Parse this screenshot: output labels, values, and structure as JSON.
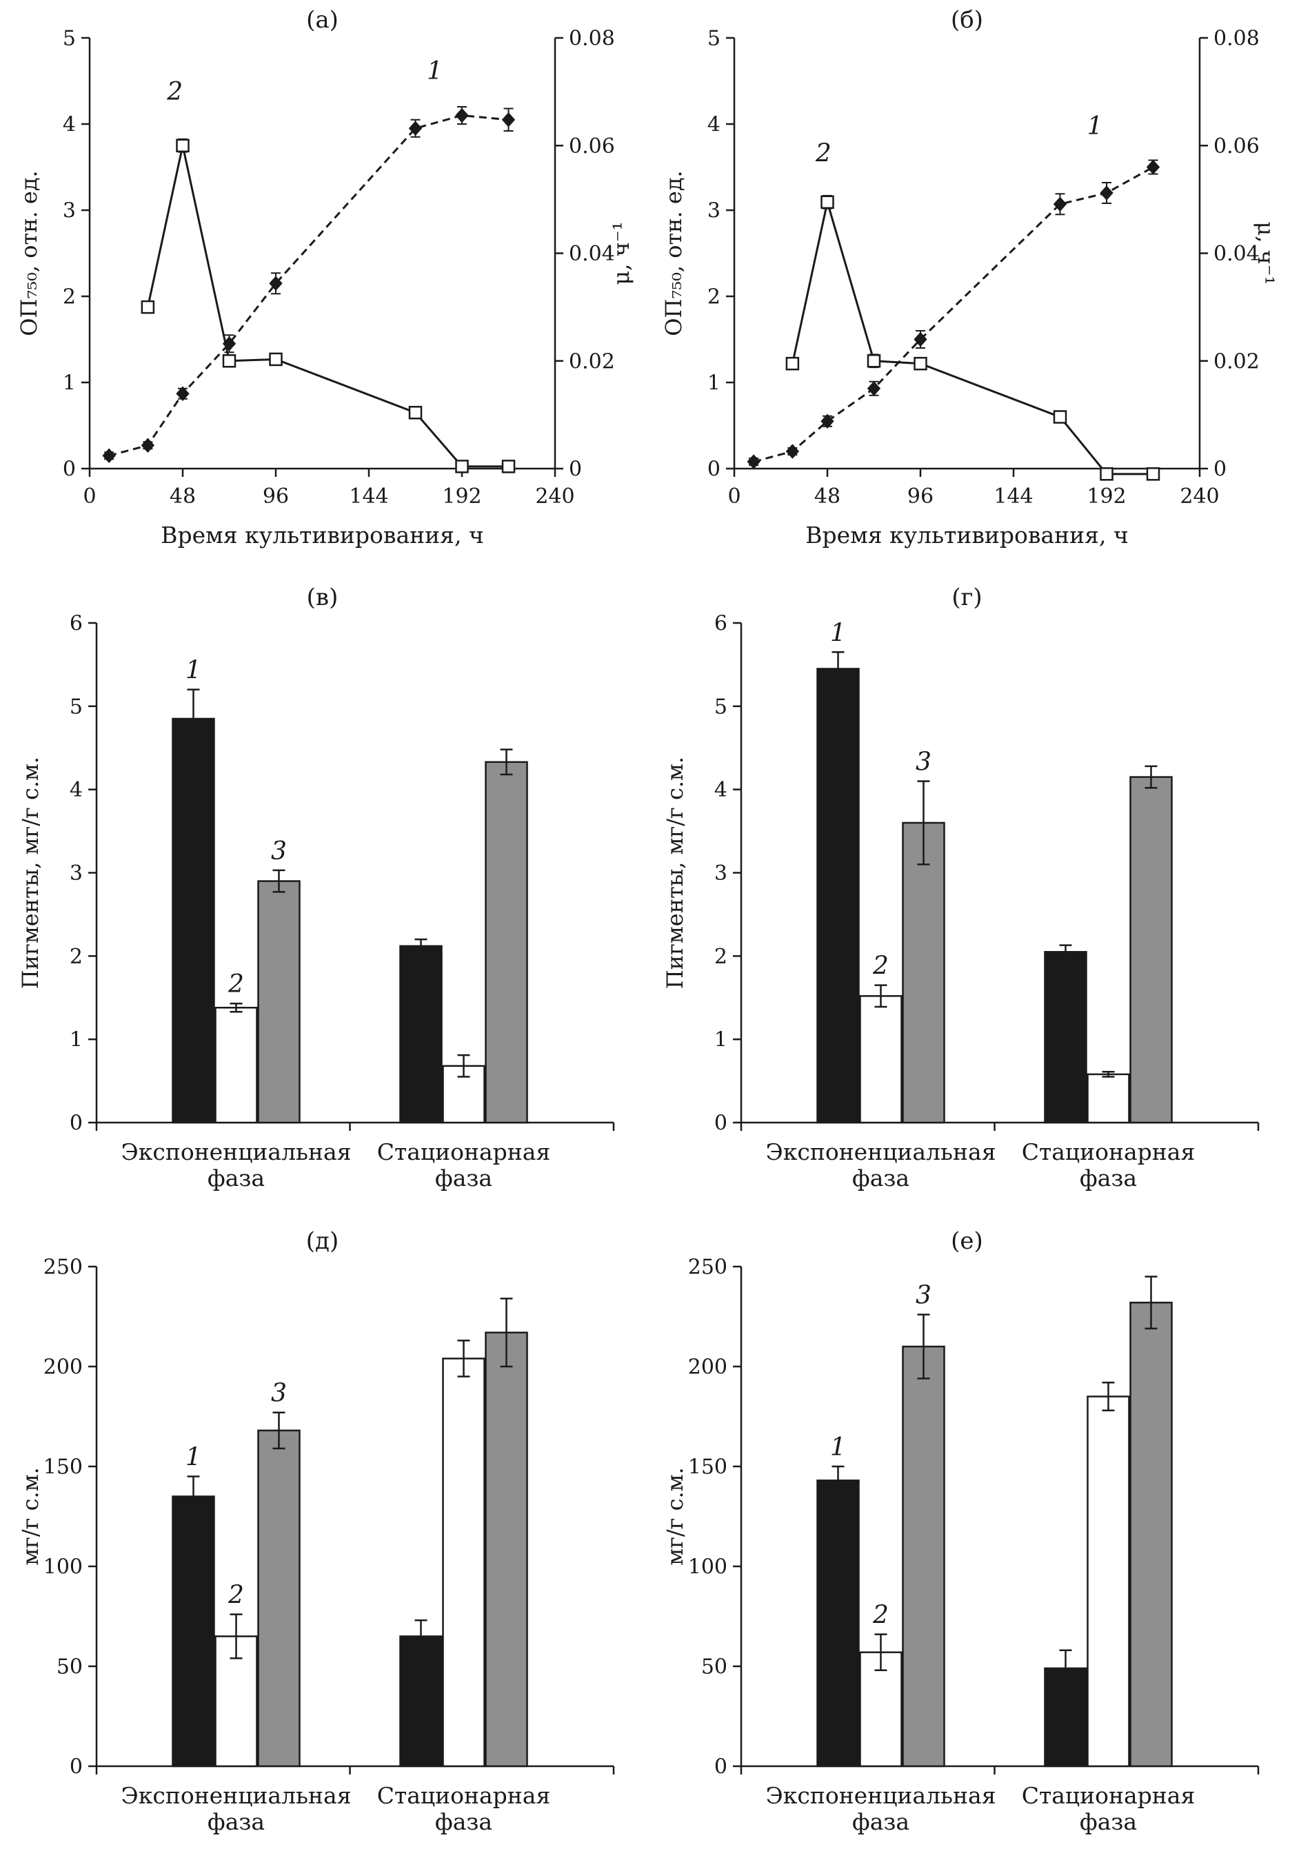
{
  "page": {
    "background": "#ffffff",
    "ink": "#1a1a1a"
  },
  "chart_data": [
    {
      "type": "line",
      "panel": "(а)",
      "xlabel": "Время культивирования, ч",
      "ylabel_left": "ОП₇₅₀, отн. ед.",
      "ylabel_right": "μ, ч⁻¹",
      "ylabel_right_rotation": -90,
      "xlim": [
        0,
        240
      ],
      "xticks": [
        0,
        48,
        96,
        144,
        192,
        240
      ],
      "ylim_left": [
        0,
        5
      ],
      "yticks_left": [
        0,
        1,
        2,
        3,
        4,
        5
      ],
      "ylim_right": [
        0,
        0.08
      ],
      "yticks_right": [
        "0",
        "0.02",
        "0.04",
        "0.06",
        "0.08"
      ],
      "series": [
        {
          "name": "1",
          "axis": "left",
          "marker": "diamond",
          "line": "dashed",
          "x": [
            10,
            30,
            48,
            72,
            96,
            168,
            192,
            216
          ],
          "y": [
            0.15,
            0.27,
            0.87,
            1.45,
            2.15,
            3.95,
            4.1,
            4.05
          ],
          "yerr": [
            0.04,
            0.04,
            0.06,
            0.1,
            0.12,
            0.1,
            0.1,
            0.13
          ],
          "label": {
            "text": "1",
            "x": 178,
            "y": 4.52
          }
        },
        {
          "name": "2",
          "axis": "right",
          "marker": "square",
          "line": "solid",
          "x": [
            30,
            48,
            72,
            96,
            168,
            192,
            216
          ],
          "y": [
            0.03,
            0.06,
            0.02,
            0.0203,
            0.0104,
            0.0004,
            0.0004
          ],
          "yerr": [
            0,
            0.0012,
            0,
            0,
            0,
            0,
            0
          ],
          "label": {
            "text": "2",
            "x": 44,
            "y": 0.0685
          }
        }
      ]
    },
    {
      "type": "line",
      "panel": "(б)",
      "xlabel": "Время культивирования, ч",
      "ylabel_left": "ОП₇₅₀, отн. ед.",
      "ylabel_right": "μ, ч⁻¹",
      "ylabel_right_rotation": 90,
      "xlim": [
        0,
        240
      ],
      "xticks": [
        0,
        48,
        96,
        144,
        192,
        240
      ],
      "ylim_left": [
        0,
        5
      ],
      "yticks_left": [
        0,
        1,
        2,
        3,
        4,
        5
      ],
      "ylim_right": [
        0,
        0.08
      ],
      "yticks_right": [
        "0",
        "0.02",
        "0.04",
        "0.06",
        "0.08"
      ],
      "series": [
        {
          "name": "1",
          "axis": "left",
          "marker": "diamond",
          "line": "dashed",
          "x": [
            10,
            30,
            48,
            72,
            96,
            168,
            192,
            216
          ],
          "y": [
            0.08,
            0.2,
            0.55,
            0.93,
            1.5,
            3.07,
            3.2,
            3.5
          ],
          "yerr": [
            0.04,
            0.04,
            0.06,
            0.08,
            0.1,
            0.12,
            0.12,
            0.08
          ],
          "label": {
            "text": "1",
            "x": 186,
            "y": 3.88
          }
        },
        {
          "name": "2",
          "axis": "right",
          "marker": "square",
          "line": "solid",
          "x": [
            30,
            48,
            72,
            96,
            168,
            192,
            216
          ],
          "y": [
            0.0195,
            0.0495,
            0.02,
            0.0195,
            0.0096,
            -0.001,
            -0.001
          ],
          "yerr": [
            0,
            0.0012,
            0.0012,
            0,
            0,
            0,
            0
          ],
          "label": {
            "text": "2",
            "x": 46,
            "y": 0.057
          }
        }
      ]
    },
    {
      "type": "bar",
      "panel": "(в)",
      "ylabel": "Пигменты, мг/г с.м.",
      "ylim": [
        0,
        6
      ],
      "yticks": [
        0,
        1,
        2,
        3,
        4,
        5,
        6
      ],
      "groups": [
        {
          "label": [
            "Экспоненциальная",
            "фаза"
          ],
          "bars": [
            {
              "label": "1",
              "value": 4.85,
              "err": 0.35,
              "fill": "#1a1a1a"
            },
            {
              "label": "2",
              "value": 1.38,
              "err": 0.05,
              "fill": "#ffffff"
            },
            {
              "label": "3",
              "value": 2.9,
              "err": 0.13,
              "fill": "#8f8f8f"
            }
          ]
        },
        {
          "label": [
            "Стационарная",
            "фаза"
          ],
          "bars": [
            {
              "value": 2.12,
              "err": 0.08,
              "fill": "#1a1a1a"
            },
            {
              "value": 0.68,
              "err": 0.13,
              "fill": "#ffffff"
            },
            {
              "value": 4.33,
              "err": 0.15,
              "fill": "#8f8f8f"
            }
          ]
        }
      ]
    },
    {
      "type": "bar",
      "panel": "(г)",
      "ylabel": "Пигменты, мг/г с.м.",
      "ylim": [
        0,
        6
      ],
      "yticks": [
        0,
        1,
        2,
        3,
        4,
        5,
        6
      ],
      "groups": [
        {
          "label": [
            "Экспоненциальная",
            "фаза"
          ],
          "bars": [
            {
              "label": "1",
              "value": 5.45,
              "err": 0.2,
              "fill": "#1a1a1a"
            },
            {
              "label": "2",
              "value": 1.52,
              "err": 0.13,
              "fill": "#ffffff"
            },
            {
              "label": "3",
              "value": 3.6,
              "err": 0.5,
              "fill": "#8f8f8f"
            }
          ]
        },
        {
          "label": [
            "Стационарная",
            "фаза"
          ],
          "bars": [
            {
              "value": 2.05,
              "err": 0.08,
              "fill": "#1a1a1a"
            },
            {
              "value": 0.58,
              "err": 0.03,
              "fill": "#ffffff"
            },
            {
              "value": 4.15,
              "err": 0.13,
              "fill": "#8f8f8f"
            }
          ]
        }
      ]
    },
    {
      "type": "bar",
      "panel": "(д)",
      "ylabel": "мг/г с.м.",
      "ylim": [
        0,
        250
      ],
      "yticks": [
        0,
        50,
        100,
        150,
        200,
        250
      ],
      "groups": [
        {
          "label": [
            "Экспоненциальная",
            "фаза"
          ],
          "bars": [
            {
              "label": "1",
              "value": 135,
              "err": 10,
              "fill": "#1a1a1a"
            },
            {
              "label": "2",
              "value": 65,
              "err": 11,
              "fill": "#ffffff"
            },
            {
              "label": "3",
              "value": 168,
              "err": 9,
              "fill": "#8f8f8f"
            }
          ]
        },
        {
          "label": [
            "Стационарная",
            "фаза"
          ],
          "bars": [
            {
              "value": 65,
              "err": 8,
              "fill": "#1a1a1a"
            },
            {
              "value": 204,
              "err": 9,
              "fill": "#ffffff"
            },
            {
              "value": 217,
              "err": 17,
              "fill": "#8f8f8f"
            }
          ]
        }
      ]
    },
    {
      "type": "bar",
      "panel": "(е)",
      "ylabel": "мг/г с.м.",
      "ylim": [
        0,
        250
      ],
      "yticks": [
        0,
        50,
        100,
        150,
        200,
        250
      ],
      "groups": [
        {
          "label": [
            "Экспоненциальная",
            "фаза"
          ],
          "bars": [
            {
              "label": "1",
              "value": 143,
              "err": 7,
              "fill": "#1a1a1a"
            },
            {
              "label": "2",
              "value": 57,
              "err": 9,
              "fill": "#ffffff"
            },
            {
              "label": "3",
              "value": 210,
              "err": 16,
              "fill": "#8f8f8f"
            }
          ]
        },
        {
          "label": [
            "Стационарная",
            "фаза"
          ],
          "bars": [
            {
              "value": 49,
              "err": 9,
              "fill": "#1a1a1a"
            },
            {
              "value": 185,
              "err": 7,
              "fill": "#ffffff"
            },
            {
              "value": 232,
              "err": 13,
              "fill": "#8f8f8f"
            }
          ]
        }
      ]
    }
  ]
}
